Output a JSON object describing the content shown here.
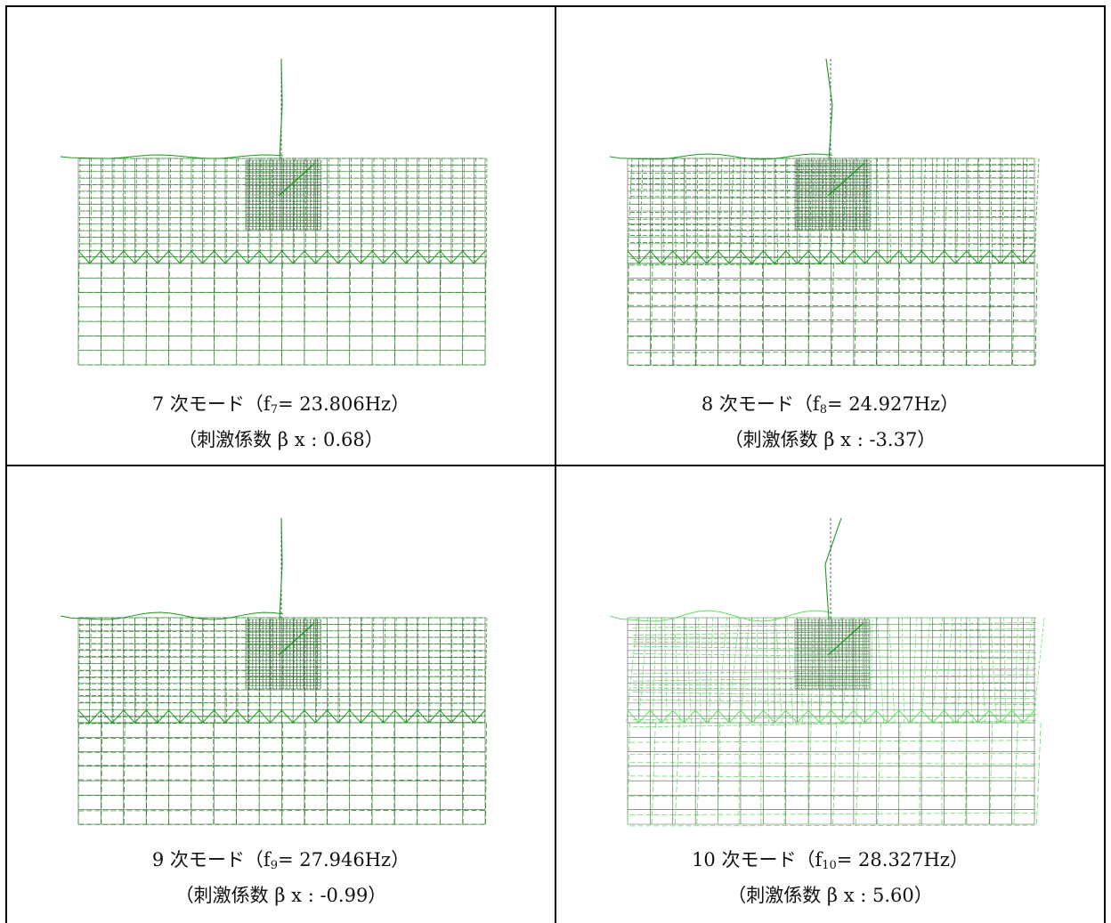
{
  "panels": [
    {
      "mode_label": "7 次モード（f",
      "mode_sub": "7",
      "mode_freq": "= 23.806Hz）",
      "participation": "（刺激係数 β x : 0.68）"
    },
    {
      "mode_label": "8 次モード（f",
      "mode_sub": "8",
      "mode_freq": "= 24.927Hz）",
      "participation": "（刺激係数 β x : -3.37）"
    },
    {
      "mode_label": "9 次モード（f",
      "mode_sub": "9",
      "mode_freq": "= 27.946Hz）",
      "participation": "（刺激係数 β x : -0.99）"
    },
    {
      "mode_label": "10 次モード（f",
      "mode_sub": "10",
      "mode_freq": "= 28.327Hz）",
      "participation": "（刺激係数 β x : 5.60）"
    }
  ],
  "colors": {
    "undeformed_mesh": "#555555",
    "mode_shape": "#1a9a1a",
    "mode_shape_light": "#66dd66"
  }
}
